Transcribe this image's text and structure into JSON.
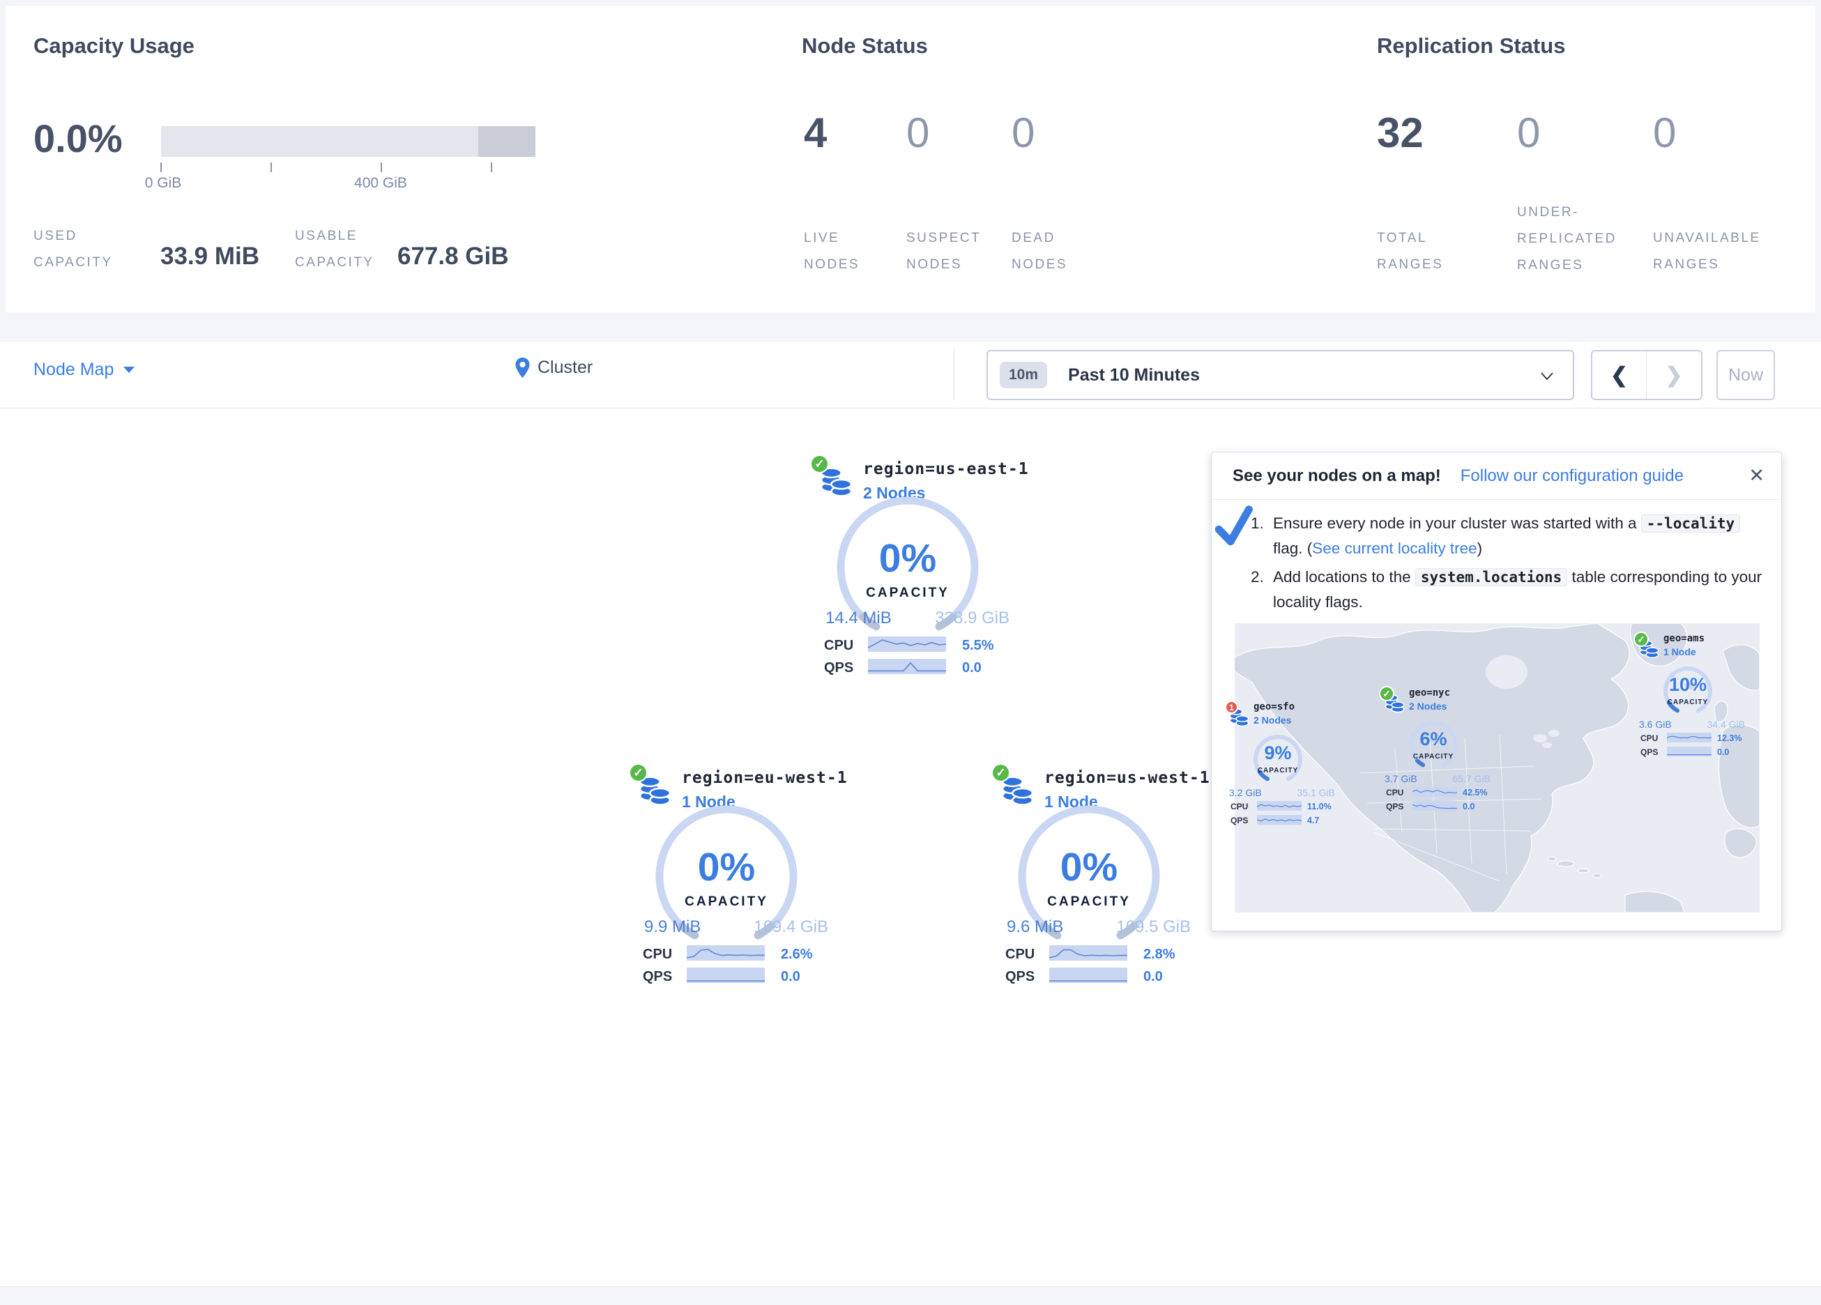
{
  "summary": {
    "capacity": {
      "title": "Capacity Usage",
      "percent": "0.0%",
      "tick0": "0 GiB",
      "tick400": "400 GiB",
      "used_label": "USED CAPACITY",
      "used_value": "33.9 MiB",
      "usable_label": "USABLE CAPACITY",
      "usable_value": "677.8 GiB"
    },
    "node_status": {
      "title": "Node Status",
      "live": {
        "value": "4",
        "label": "LIVE NODES"
      },
      "suspect": {
        "value": "0",
        "label": "SUSPECT NODES"
      },
      "dead": {
        "value": "0",
        "label": "DEAD NODES"
      }
    },
    "replication": {
      "title": "Replication Status",
      "total": {
        "value": "32",
        "label": "TOTAL RANGES"
      },
      "under": {
        "value": "0",
        "label": "UNDER-REPLICATED RANGES"
      },
      "unavailable": {
        "value": "0",
        "label": "UNAVAILABLE RANGES"
      }
    }
  },
  "toolbar": {
    "view": "Node Map",
    "breadcrumb": "Cluster",
    "time_badge": "10m",
    "time_range": "Past 10 Minutes",
    "prev": "❮",
    "next": "❯",
    "now": "Now"
  },
  "regions": [
    {
      "status": "healthy",
      "title": "region=us-east-1",
      "nodes": "2 Nodes",
      "percent": "0%",
      "capacity_label": "CAPACITY",
      "used": "14.4 MiB",
      "total": "338.9 GiB",
      "cpu_label": "CPU",
      "cpu": "5.5%",
      "qps_label": "QPS",
      "qps": "0.0",
      "cpu_spark": [
        0.75,
        0.5,
        0.2,
        0.35,
        0.5,
        0.42,
        0.6,
        0.45,
        0.55,
        0.38,
        0.55,
        0.5
      ],
      "qps_spark": [
        0.82,
        0.82,
        0.82,
        0.82,
        0.82,
        0.82,
        0.25,
        0.82,
        0.82,
        0.82,
        0.82,
        0.82
      ]
    },
    {
      "status": "healthy",
      "title": "region=eu-west-1",
      "nodes": "1 Node",
      "percent": "0%",
      "capacity_label": "CAPACITY",
      "used": "9.9 MiB",
      "total": "169.4 GiB",
      "cpu_label": "CPU",
      "cpu": "2.6%",
      "qps_label": "QPS",
      "qps": "0.0",
      "cpu_spark": [
        0.85,
        0.75,
        0.3,
        0.25,
        0.55,
        0.68,
        0.64,
        0.67,
        0.65,
        0.68,
        0.66,
        0.67
      ],
      "qps_spark": [
        0.9,
        0.9,
        0.9,
        0.9,
        0.9,
        0.9,
        0.9,
        0.9,
        0.9,
        0.9,
        0.9,
        0.9
      ]
    },
    {
      "status": "healthy",
      "title": "region=us-west-1",
      "nodes": "1 Node",
      "percent": "0%",
      "capacity_label": "CAPACITY",
      "used": "9.6 MiB",
      "total": "169.5 GiB",
      "cpu_label": "CPU",
      "cpu": "2.8%",
      "qps_label": "QPS",
      "qps": "0.0",
      "cpu_spark": [
        0.85,
        0.72,
        0.28,
        0.27,
        0.58,
        0.7,
        0.66,
        0.69,
        0.67,
        0.7,
        0.67,
        0.68
      ],
      "qps_spark": [
        0.9,
        0.9,
        0.9,
        0.9,
        0.9,
        0.9,
        0.9,
        0.9,
        0.9,
        0.9,
        0.9,
        0.9
      ]
    }
  ],
  "popup": {
    "title": "See your nodes on a map!",
    "link": "Follow our configuration guide",
    "close": "✕",
    "step1": {
      "num": "1.",
      "pre": "Ensure every node in your cluster was started with a ",
      "code": "--locality",
      "mid": " flag. (",
      "link": "See current locality tree",
      "post": ")"
    },
    "step2": {
      "num": "2.",
      "pre": "Add locations to the ",
      "code": "system.locations",
      "post": " table corresponding to your locality flags."
    },
    "map_nodes": [
      {
        "status": "warning",
        "badge": "1",
        "title": "geo=sfo",
        "nodes": "2 Nodes",
        "percent": "9%",
        "capacity_label": "CAPACITY",
        "used": "3.2 GiB",
        "total": "35.1 GiB",
        "cpu_label": "CPU",
        "cpu": "11.0%",
        "qps_label": "QPS",
        "qps": "4.7",
        "cpu_spark": [
          0.6,
          0.35,
          0.5,
          0.42,
          0.55,
          0.48,
          0.6,
          0.45,
          0.65,
          0.5,
          0.58,
          0.52
        ],
        "qps_spark": [
          0.5,
          0.65,
          0.4,
          0.6,
          0.45,
          0.62,
          0.5,
          0.66,
          0.48,
          0.6,
          0.52,
          0.58
        ]
      },
      {
        "status": "healthy",
        "title": "geo=nyc",
        "nodes": "2 Nodes",
        "percent": "6%",
        "capacity_label": "CAPACITY",
        "used": "3.7 GiB",
        "total": "65.7 GiB",
        "cpu_label": "CPU",
        "cpu": "42.5%",
        "qps_label": "QPS",
        "qps": "0.0",
        "cpu_spark": [
          0.45,
          0.3,
          0.55,
          0.4,
          0.35,
          0.5,
          0.3,
          0.45,
          0.65,
          0.55,
          0.6,
          0.58
        ],
        "qps_spark": [
          0.35,
          0.55,
          0.4,
          0.6,
          0.45,
          0.5,
          0.7,
          0.75,
          0.78,
          0.8,
          0.78,
          0.8
        ]
      },
      {
        "status": "healthy",
        "title": "geo=ams",
        "nodes": "1 Node",
        "percent": "10%",
        "capacity_label": "CAPACITY",
        "used": "3.6 GiB",
        "total": "34.4 GiB",
        "cpu_label": "CPU",
        "cpu": "12.3%",
        "qps_label": "QPS",
        "qps": "0.0",
        "cpu_spark": [
          0.5,
          0.35,
          0.38,
          0.55,
          0.52,
          0.55,
          0.38,
          0.4,
          0.55,
          0.52,
          0.54,
          0.53
        ],
        "qps_spark": [
          0.88,
          0.88,
          0.88,
          0.88,
          0.88,
          0.88,
          0.88,
          0.88,
          0.88,
          0.88,
          0.88,
          0.88
        ]
      }
    ]
  }
}
